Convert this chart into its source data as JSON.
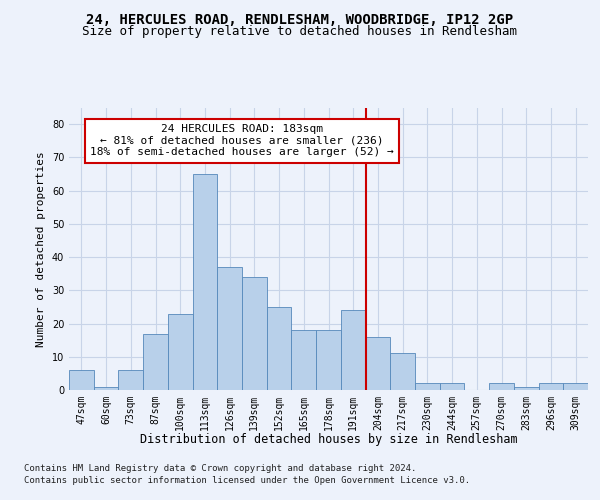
{
  "title1": "24, HERCULES ROAD, RENDLESHAM, WOODBRIDGE, IP12 2GP",
  "title2": "Size of property relative to detached houses in Rendlesham",
  "xlabel": "Distribution of detached houses by size in Rendlesham",
  "ylabel": "Number of detached properties",
  "categories": [
    "47sqm",
    "60sqm",
    "73sqm",
    "87sqm",
    "100sqm",
    "113sqm",
    "126sqm",
    "139sqm",
    "152sqm",
    "165sqm",
    "178sqm",
    "191sqm",
    "204sqm",
    "217sqm",
    "230sqm",
    "244sqm",
    "257sqm",
    "270sqm",
    "283sqm",
    "296sqm",
    "309sqm"
  ],
  "values": [
    6,
    1,
    6,
    17,
    23,
    65,
    37,
    34,
    25,
    18,
    18,
    24,
    16,
    11,
    2,
    2,
    0,
    2,
    1,
    2,
    2
  ],
  "bar_color": "#b8d0ea",
  "bar_edge_color": "#5588bb",
  "vline_x": 11.5,
  "vline_color": "#cc0000",
  "annotation_text": "24 HERCULES ROAD: 183sqm\n← 81% of detached houses are smaller (236)\n18% of semi-detached houses are larger (52) →",
  "annotation_box_color": "#ffffff",
  "annotation_box_edge": "#cc0000",
  "ylim": [
    0,
    85
  ],
  "yticks": [
    0,
    10,
    20,
    30,
    40,
    50,
    60,
    70,
    80
  ],
  "grid_color": "#c8d4e8",
  "footer1": "Contains HM Land Registry data © Crown copyright and database right 2024.",
  "footer2": "Contains public sector information licensed under the Open Government Licence v3.0.",
  "bg_color": "#edf2fb",
  "title1_fontsize": 10,
  "title2_fontsize": 9,
  "annotation_fontsize": 8,
  "tick_fontsize": 7,
  "ylabel_fontsize": 8,
  "xlabel_fontsize": 8.5,
  "footer_fontsize": 6.5
}
